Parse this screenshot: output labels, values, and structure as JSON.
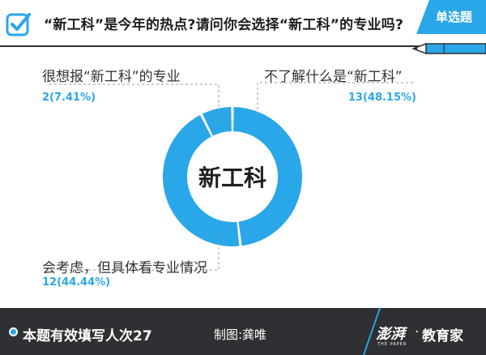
{
  "header": {
    "question": "“新工科”是今年的热点?请问你会选择“新工科”的专业吗?",
    "badge": "单选题"
  },
  "chart_data": {
    "type": "donut",
    "center_label": "新工科",
    "slices": [
      {
        "name": "不了解什么是“新工科”",
        "count": 13,
        "percent": 48.15,
        "value_label": "13(48.15%)",
        "color": "#2aa7e8"
      },
      {
        "name": "会考虑，但具体看专业情况",
        "count": 12,
        "percent": 44.44,
        "value_label": "12(44.44%)",
        "color": "#2aa7e8"
      },
      {
        "name": "很想报“新工科”的专业",
        "count": 2,
        "percent": 7.41,
        "value_label": "2(7.41%)",
        "color": "#2aa7e8"
      }
    ]
  },
  "footer": {
    "count_text": "本题有效填写人次27",
    "credit": "制图:龚唯",
    "brand_logo": "澎湃",
    "brand_sub": "THE PAPER",
    "brand_name": "教育家"
  },
  "colors": {
    "accent": "#2aa7e8",
    "dark": "#2f3033",
    "text": "#1f1f1f"
  }
}
